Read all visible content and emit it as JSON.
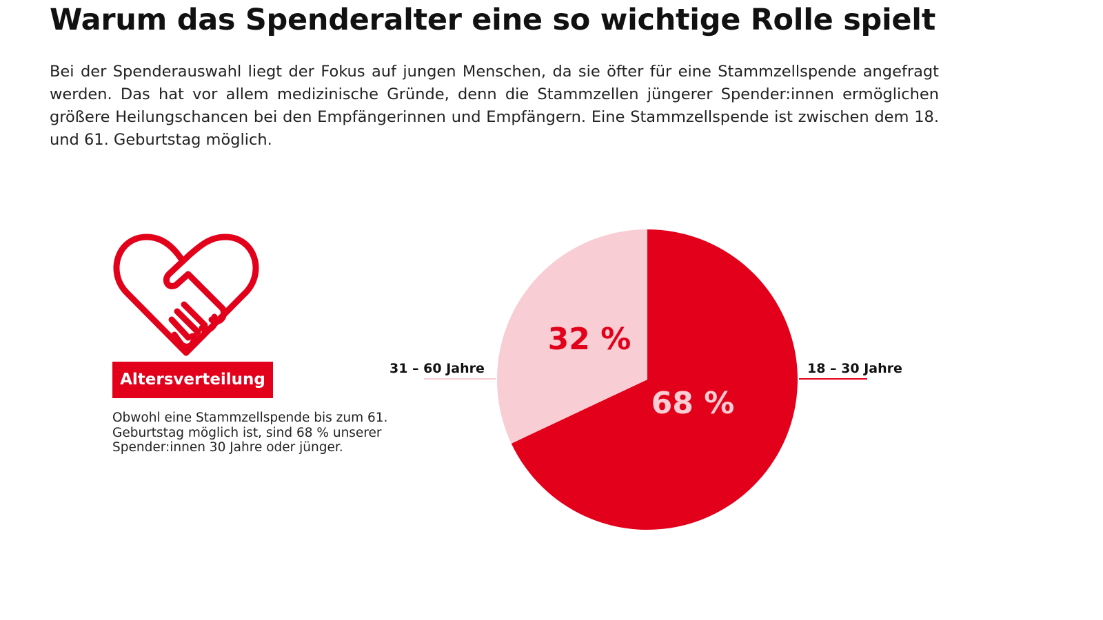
{
  "header": {
    "title": "Warum das Spenderalter eine so wichtige Rolle spielt",
    "intro": "Bei der Spenderauswahl liegt der Fokus auf jungen Menschen, da sie öfter für eine Stammzellspende angefragt werden. Das hat vor allem medizinische Gründe, denn die Stammzellen jüngerer Spender:innen ermöglichen größere Heilungschancen bei den Empfängerinnen und Empfängern. Eine Stammzellspende ist zwischen dem 18. und 61. Geburtstag möglich."
  },
  "sidebar": {
    "icon": "heart-handshake-icon",
    "badge": "Altersverteilung",
    "note": "Obwohl eine Stammzellspende bis zum 61. Geburtstag möglich ist, sind 68 % unserer Spender:innen 30 Jahre oder jünger."
  },
  "colors": {
    "accent": "#e2001a",
    "light": "#f8cdd3"
  },
  "chart_data": {
    "type": "pie",
    "start": "top, clockwise",
    "slices": [
      {
        "category": "18 – 30 Jahre",
        "value": 68,
        "label": "68 %",
        "color": "#e2001a",
        "label_color": "#f8cdd3"
      },
      {
        "category": "31 – 60 Jahre",
        "value": 32,
        "label": "32 %",
        "color": "#f8cdd3",
        "label_color": "#e2001a"
      }
    ]
  }
}
